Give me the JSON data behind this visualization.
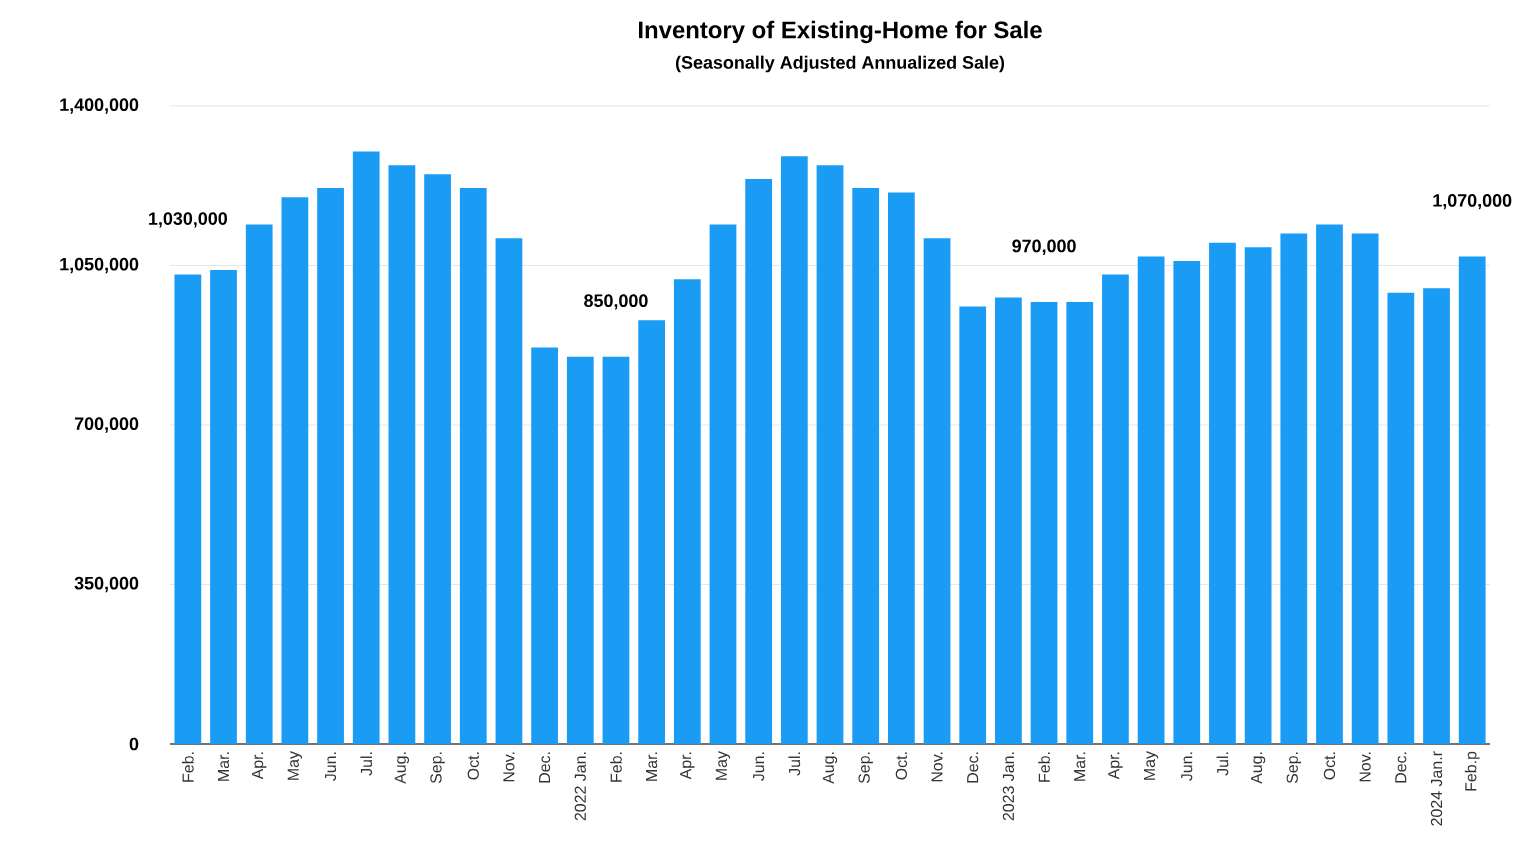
{
  "chart_data": {
    "type": "bar",
    "title": "Inventory of Existing-Home for Sale",
    "subtitle": "(Seasonally Adjusted Annualized Sale)",
    "categories": [
      "Feb.",
      "Mar.",
      "Apr.",
      "May",
      "Jun.",
      "Jul.",
      "Aug.",
      "Sep.",
      "Oct.",
      "Nov.",
      "Dec.",
      "2022 Jan.",
      "Feb.",
      "Mar.",
      "Apr.",
      "May",
      "Jun.",
      "Jul.",
      "Aug.",
      "Sep.",
      "Oct.",
      "Nov.",
      "Dec.",
      "2023 Jan.",
      "Feb.",
      "Mar.",
      "Apr.",
      "May",
      "Jun.",
      "Jul.",
      "Aug.",
      "Sep.",
      "Oct.",
      "Nov.",
      "Dec.",
      "2024 Jan.r",
      "Feb.p"
    ],
    "values": [
      1030000,
      1040000,
      1140000,
      1200000,
      1220000,
      1300000,
      1270000,
      1250000,
      1220000,
      1110000,
      870000,
      850000,
      850000,
      930000,
      1020000,
      1140000,
      1240000,
      1290000,
      1270000,
      1220000,
      1210000,
      1110000,
      960000,
      980000,
      970000,
      970000,
      1030000,
      1070000,
      1060000,
      1100000,
      1090000,
      1120000,
      1140000,
      1120000,
      990000,
      1000000,
      1070000
    ],
    "value_labels": [
      "1,030,000",
      null,
      null,
      null,
      null,
      null,
      null,
      null,
      null,
      null,
      null,
      null,
      "850,000",
      null,
      null,
      null,
      null,
      null,
      null,
      null,
      null,
      null,
      null,
      null,
      "970,000",
      null,
      null,
      null,
      null,
      null,
      null,
      null,
      null,
      null,
      null,
      null,
      "1,070,000"
    ],
    "color": "#1a9cf5",
    "ylim": [
      0,
      1400000
    ],
    "yticks": [
      {
        "value": 0,
        "label": "0"
      },
      {
        "value": 350000,
        "label": "350,000"
      },
      {
        "value": 700000,
        "label": "700,000"
      },
      {
        "value": 1050000,
        "label": "1,050,000"
      },
      {
        "value": 1400000,
        "label": "1,400,000"
      }
    ],
    "grid": "y"
  }
}
